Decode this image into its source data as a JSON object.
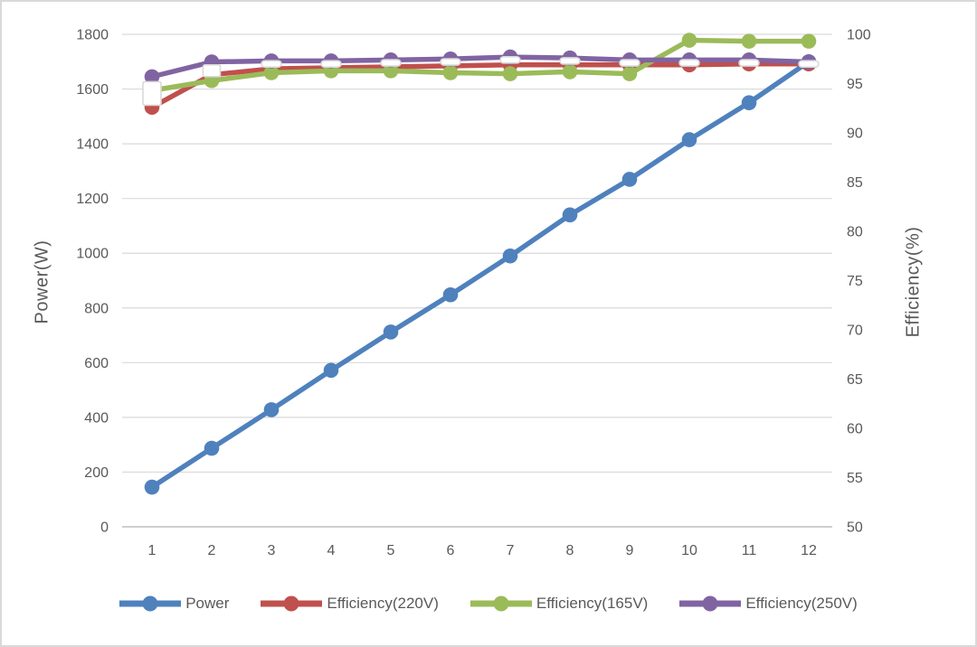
{
  "chart_data": {
    "type": "line",
    "title": "",
    "x_categories": [
      "1",
      "2",
      "3",
      "4",
      "5",
      "6",
      "7",
      "8",
      "9",
      "10",
      "11",
      "12"
    ],
    "xlabel": "",
    "left_axis": {
      "title": "Power(W)",
      "min": 0,
      "max": 1800,
      "step": 200
    },
    "right_axis": {
      "title": "Efficiency(%)",
      "min": 50,
      "max": 100,
      "step": 5
    },
    "grid": true,
    "legend_position": "bottom",
    "series": [
      {
        "name": "Power",
        "axis": "left",
        "color": "#4F81BD",
        "marker": "circle",
        "values": [
          145,
          287,
          428,
          572,
          712,
          848,
          990,
          1140,
          1270,
          1415,
          1550,
          1700
        ]
      },
      {
        "name": "Efficiency(220V)",
        "axis": "right",
        "color": "#C0504D",
        "marker": "circle",
        "values": [
          92.6,
          95.9,
          96.5,
          96.6,
          96.7,
          96.8,
          96.9,
          96.9,
          96.9,
          96.9,
          97.0,
          97.0
        ]
      },
      {
        "name": "Efficiency(165V)",
        "axis": "right",
        "color": "#9BBB59",
        "marker": "circle",
        "values": [
          94.3,
          95.3,
          96.1,
          96.3,
          96.3,
          96.1,
          96.0,
          96.2,
          96.0,
          99.4,
          99.3,
          99.3
        ]
      },
      {
        "name": "Efficiency(250V)",
        "axis": "right",
        "color": "#8064A2",
        "marker": "circle",
        "values": [
          95.7,
          97.2,
          97.3,
          97.3,
          97.4,
          97.5,
          97.7,
          97.6,
          97.4,
          97.4,
          97.4,
          97.2
        ]
      }
    ],
    "overlay_markers": {
      "fill": "#FFFFFF",
      "border": "#D9D9D9",
      "points": [
        {
          "x": 1,
          "value": 94.0,
          "shape": "square-large"
        },
        {
          "x": 2,
          "value": 96.3,
          "shape": "square-small"
        },
        {
          "x": 3,
          "value": 97.0,
          "shape": "dash"
        },
        {
          "x": 4,
          "value": 97.0,
          "shape": "dash"
        },
        {
          "x": 5,
          "value": 97.1,
          "shape": "dash"
        },
        {
          "x": 6,
          "value": 97.2,
          "shape": "dash"
        },
        {
          "x": 7,
          "value": 97.4,
          "shape": "dash"
        },
        {
          "x": 8,
          "value": 97.3,
          "shape": "dash"
        },
        {
          "x": 9,
          "value": 97.1,
          "shape": "dash"
        },
        {
          "x": 10,
          "value": 97.1,
          "shape": "dash"
        },
        {
          "x": 11,
          "value": 97.1,
          "shape": "dash"
        },
        {
          "x": 12,
          "value": 97.0,
          "shape": "dash"
        }
      ]
    },
    "colors": {
      "text": "#595959",
      "grid": "#D9D9D9",
      "axis_line": "#BFBFBF",
      "background": "#FFFFFF"
    }
  }
}
